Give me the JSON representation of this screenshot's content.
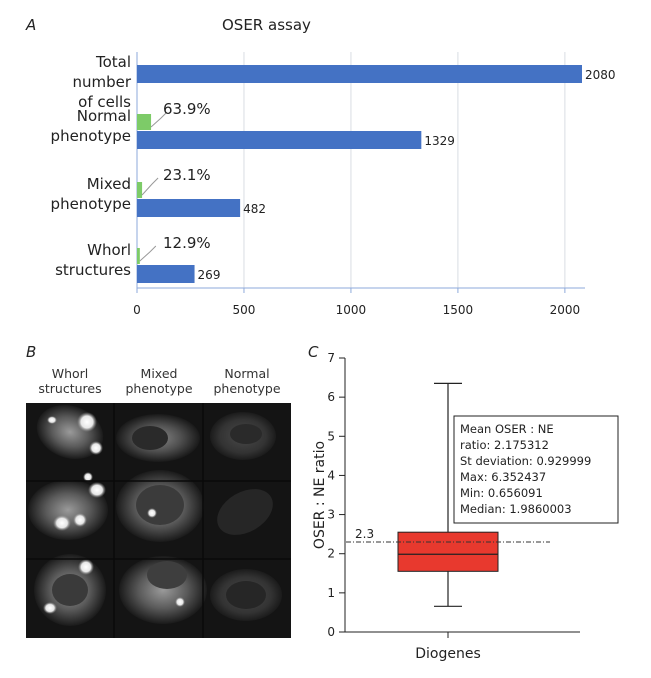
{
  "chart_data": [
    {
      "panel": "A",
      "type": "bar",
      "orientation": "horizontal",
      "title": "OSER assay",
      "categories": [
        {
          "label_lines": [
            "Total",
            "number",
            "of cells"
          ],
          "value": 2080,
          "pct_label": null,
          "pct_fraction": null
        },
        {
          "label_lines": [
            "Normal",
            "phenotype"
          ],
          "value": 1329,
          "pct_label": "63.9%",
          "pct_fraction": 0.639
        },
        {
          "label_lines": [
            "Mixed",
            "phenotype"
          ],
          "value": 482,
          "pct_label": "23.1%",
          "pct_fraction": 0.231
        },
        {
          "label_lines": [
            "Whorl",
            "structures"
          ],
          "value": 269,
          "pct_label": "12.9%",
          "pct_fraction": 0.129
        }
      ],
      "xlim": [
        0,
        2080
      ],
      "xticks": [
        0,
        500,
        1000,
        1500,
        2000
      ],
      "colors": {
        "count": "#4472c4",
        "percent": "#7dcb68",
        "grid": "#d9dde3",
        "axis": "#8eaadb"
      }
    },
    {
      "panel": "C",
      "type": "boxplot",
      "category": "Diogenes",
      "ylabel": "OSER : NE ratio",
      "ylim": [
        0,
        7
      ],
      "yticks": [
        0,
        1,
        2,
        3,
        4,
        5,
        6,
        7
      ],
      "box": {
        "q1": 1.55,
        "median": 1.9860003,
        "q3": 2.55,
        "whisker_low": 0.656091,
        "whisker_high": 6.352437
      },
      "reference_line": {
        "value": 2.3,
        "label": "2.3"
      },
      "stats_text": [
        "Mean OSER : NE",
        "ratio: 2.175312",
        "St deviation: 0.929999",
        "Max: 6.352437",
        "Min: 0.656091",
        "Median: 1.9860003"
      ],
      "colors": {
        "box": "#e8392e",
        "box_edge": "#222222"
      }
    }
  ],
  "panel_b": {
    "letter": "B",
    "columns": [
      {
        "lines": [
          "Whorl",
          "structures"
        ]
      },
      {
        "lines": [
          "Mixed",
          "phenotype"
        ]
      },
      {
        "lines": [
          "Normal",
          "phenotype"
        ]
      }
    ]
  },
  "panel_letters": {
    "a": "A",
    "b": "B",
    "c": "C"
  }
}
